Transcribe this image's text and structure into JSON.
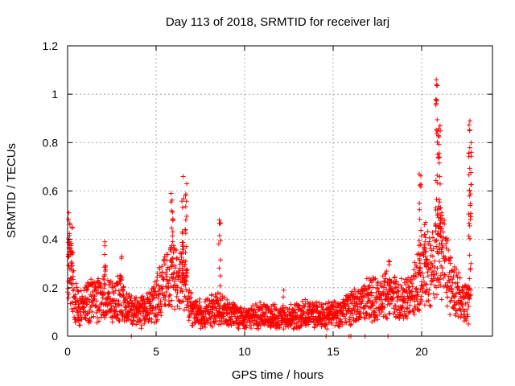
{
  "chart_data": {
    "type": "scatter",
    "title": "Day 113 of 2018, SRMTID for receiver larj",
    "xlabel": "GPS time / hours",
    "ylabel": "SRMTID / TECUs",
    "xlim": [
      0,
      24
    ],
    "ylim": [
      0,
      1.2
    ],
    "x_ticks": [
      0,
      5,
      10,
      15,
      20
    ],
    "x_tick_labels": [
      "0",
      "5",
      "10",
      "15",
      "20"
    ],
    "y_ticks": [
      0,
      0.2,
      0.4,
      0.6,
      0.8,
      1.0,
      1.2
    ],
    "y_tick_labels": [
      "0",
      "0.2",
      "0.4",
      "0.6",
      "0.8",
      "1",
      "1.2"
    ],
    "grid": true,
    "marker": "plus",
    "color": "#ff0000",
    "series": [
      {
        "name": "SRMTID",
        "profile": [
          [
            0.0,
            0.22
          ],
          [
            0.15,
            0.3
          ],
          [
            0.4,
            0.14
          ],
          [
            0.8,
            0.12
          ],
          [
            1.3,
            0.15
          ],
          [
            1.8,
            0.15
          ],
          [
            2.2,
            0.17
          ],
          [
            2.7,
            0.15
          ],
          [
            3.0,
            0.16
          ],
          [
            3.5,
            0.11
          ],
          [
            4.0,
            0.1
          ],
          [
            4.5,
            0.11
          ],
          [
            5.0,
            0.15
          ],
          [
            5.5,
            0.24
          ],
          [
            5.9,
            0.27
          ],
          [
            6.2,
            0.22
          ],
          [
            6.5,
            0.22
          ],
          [
            6.7,
            0.2
          ],
          [
            7.0,
            0.1
          ],
          [
            7.5,
            0.09
          ],
          [
            8.0,
            0.1
          ],
          [
            8.5,
            0.12
          ],
          [
            9.0,
            0.1
          ],
          [
            9.5,
            0.08
          ],
          [
            10.0,
            0.07
          ],
          [
            10.5,
            0.08
          ],
          [
            11.0,
            0.09
          ],
          [
            11.5,
            0.08
          ],
          [
            12.0,
            0.07
          ],
          [
            12.5,
            0.08
          ],
          [
            13.0,
            0.08
          ],
          [
            13.5,
            0.09
          ],
          [
            14.0,
            0.09
          ],
          [
            14.5,
            0.08
          ],
          [
            15.0,
            0.09
          ],
          [
            15.5,
            0.1
          ],
          [
            16.0,
            0.12
          ],
          [
            16.5,
            0.14
          ],
          [
            17.0,
            0.16
          ],
          [
            17.5,
            0.15
          ],
          [
            18.0,
            0.17
          ],
          [
            18.5,
            0.16
          ],
          [
            19.0,
            0.14
          ],
          [
            19.5,
            0.17
          ],
          [
            19.9,
            0.25
          ],
          [
            20.2,
            0.3
          ],
          [
            20.5,
            0.26
          ],
          [
            20.8,
            0.33
          ],
          [
            21.0,
            0.35
          ],
          [
            21.3,
            0.33
          ],
          [
            21.6,
            0.22
          ],
          [
            22.0,
            0.17
          ],
          [
            22.4,
            0.14
          ],
          [
            22.7,
            0.13
          ]
        ],
        "spikes": [
          {
            "x": 0.1,
            "max": 0.51
          },
          {
            "x": 0.25,
            "max": 0.45
          },
          {
            "x": 2.1,
            "max": 0.39
          },
          {
            "x": 3.0,
            "max": 0.33
          },
          {
            "x": 5.9,
            "max": 0.59
          },
          {
            "x": 6.5,
            "max": 0.66
          },
          {
            "x": 6.7,
            "max": 0.63
          },
          {
            "x": 8.6,
            "max": 0.48
          },
          {
            "x": 12.2,
            "max": 0.19
          },
          {
            "x": 18.2,
            "max": 0.31
          },
          {
            "x": 19.9,
            "max": 0.67
          },
          {
            "x": 20.2,
            "max": 0.47
          },
          {
            "x": 20.85,
            "max": 1.06
          },
          {
            "x": 21.0,
            "max": 0.87
          },
          {
            "x": 21.1,
            "max": 0.5
          },
          {
            "x": 22.7,
            "max": 0.89
          },
          {
            "x": 22.75,
            "max": 0.8
          }
        ],
        "zero_points": [
          3.6,
          14.6,
          15.9,
          16.0,
          16.8,
          18.1
        ]
      }
    ]
  }
}
